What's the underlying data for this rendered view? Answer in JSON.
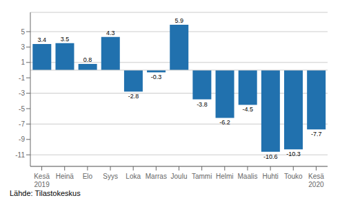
{
  "chart_data": {
    "type": "bar",
    "categories": [
      "Kesä\n2019",
      "Heinä",
      "Elo",
      "Syys",
      "Loka",
      "Marras",
      "Joulu",
      "Tammi",
      "Helmi",
      "Maalis",
      "Huhti",
      "Touko",
      "Kesä\n2020"
    ],
    "values": [
      3.4,
      3.5,
      0.8,
      4.3,
      -2.8,
      -0.3,
      5.9,
      -3.8,
      -6.2,
      -4.5,
      -10.6,
      -10.3,
      -7.7
    ],
    "color": "#2171AE",
    "ylim": [
      -12.5,
      7.5
    ],
    "yticks": [
      -11,
      -9,
      -7,
      -5,
      -3,
      -1,
      1,
      3,
      5
    ],
    "grid": true,
    "data_labels": true,
    "source": "Lähde: Tilastokeskus"
  }
}
